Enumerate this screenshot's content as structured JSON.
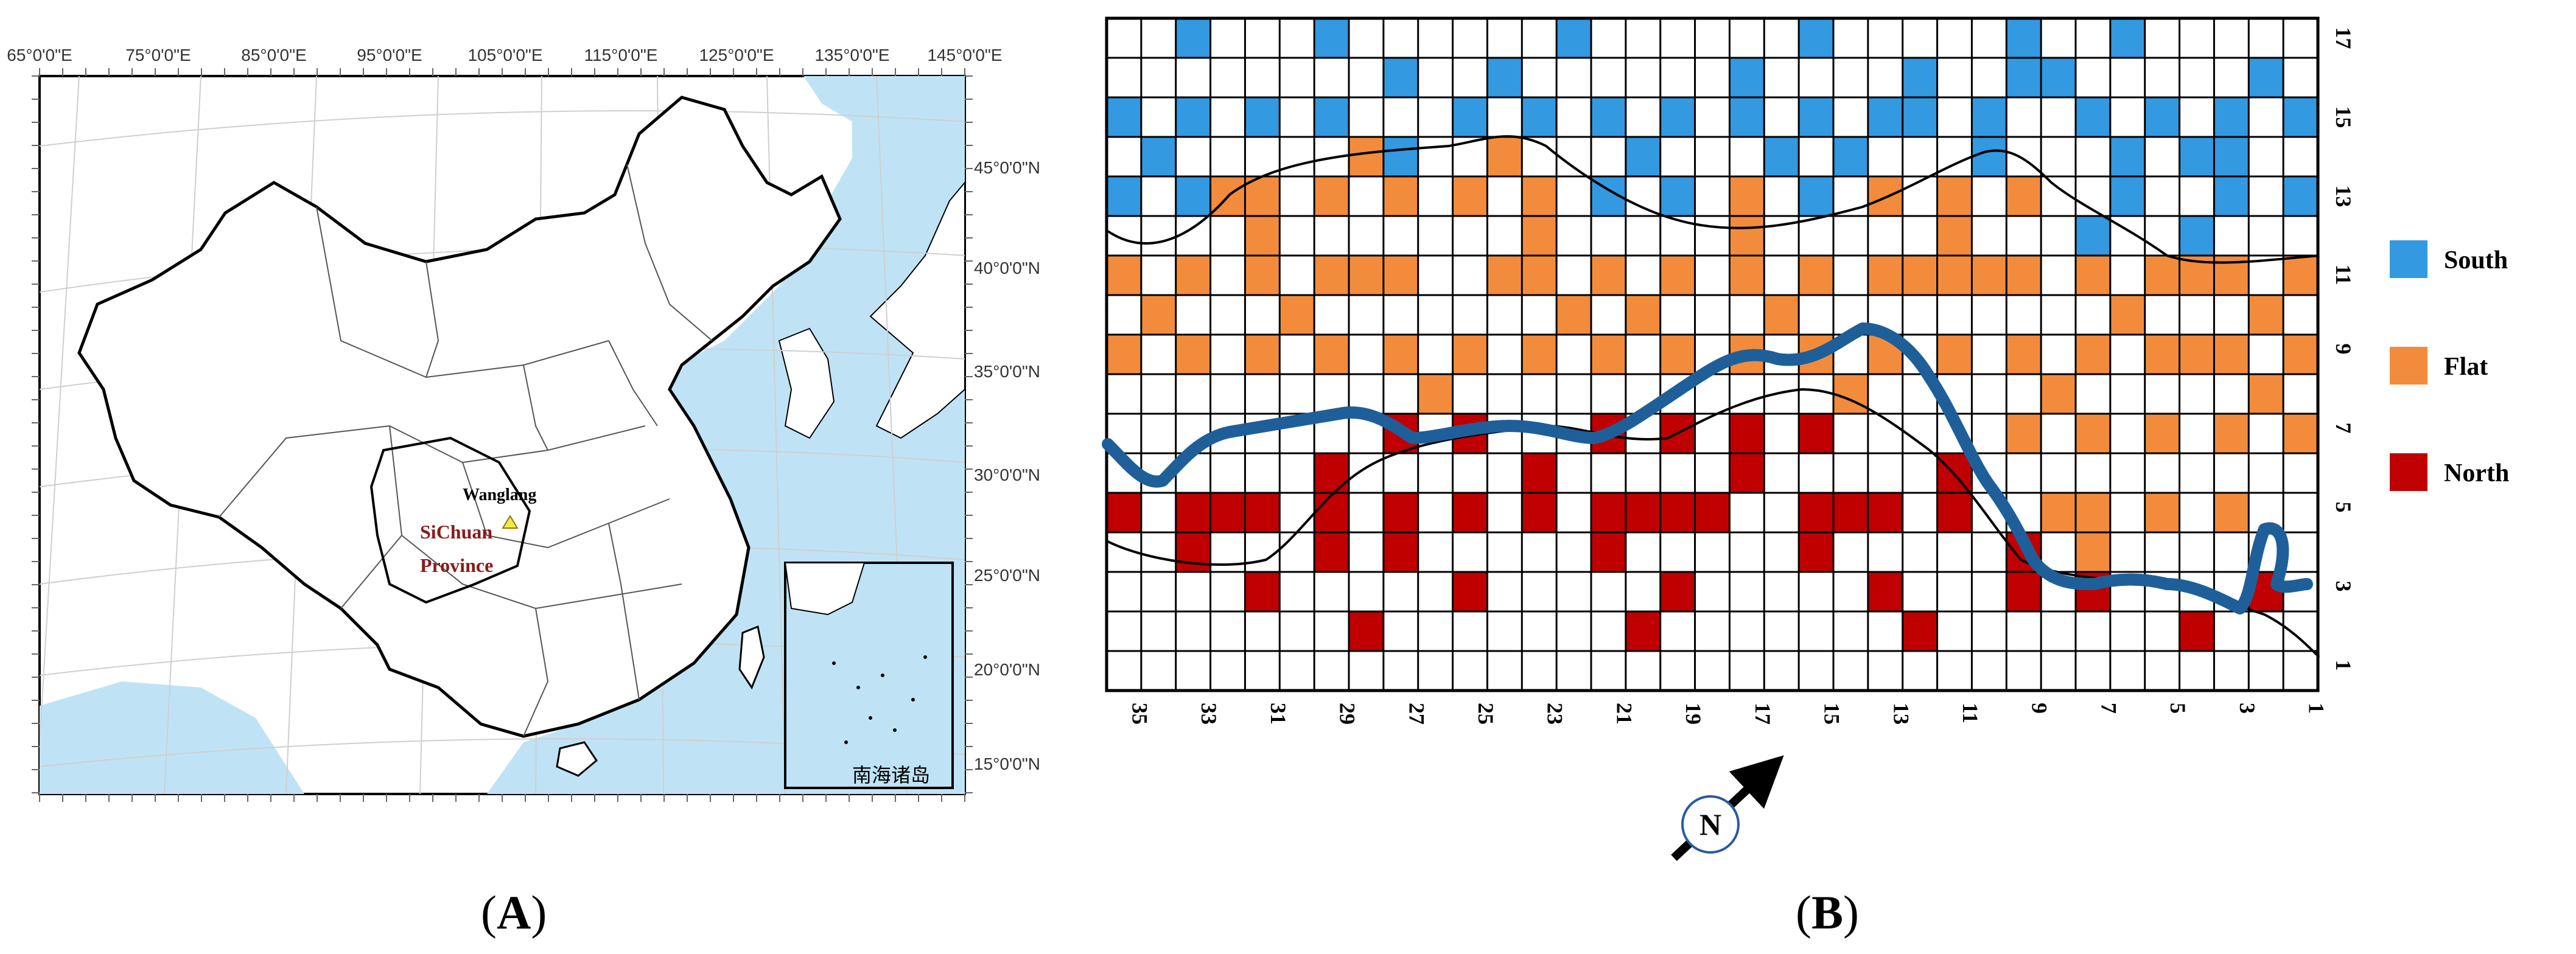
{
  "panel_a": {
    "lon_labels": [
      "65°0'0\"E",
      "75°0'0\"E",
      "85°0'0\"E",
      "95°0'0\"E",
      "105°0'0\"E",
      "115°0'0\"E",
      "125°0'0\"E",
      "135°0'0\"E",
      "145°0'0\"E"
    ],
    "lat_labels": [
      "45°0'0\"N",
      "40°0'0\"N",
      "35°0'0\"N",
      "30°0'0\"N",
      "25°0'0\"N",
      "20°0'0\"N",
      "15°0'0\"N"
    ],
    "site_label": "Wanglang",
    "province_line1": "SiChuan",
    "province_line2": "Province",
    "inset_label": "南海诸岛",
    "colors": {
      "sea": "#bfe3f5",
      "land": "#ffffff",
      "border": "#000000",
      "province_text": "#8b1a1a",
      "site_marker": "#f5e94a"
    }
  },
  "panel_b": {
    "columns": 35,
    "rows": 17,
    "x_tick_labels": [
      "35",
      "33",
      "31",
      "29",
      "27",
      "25",
      "23",
      "21",
      "19",
      "17",
      "15",
      "13",
      "11",
      "9",
      "7",
      "5",
      "3",
      "1"
    ],
    "y_tick_labels": [
      "17",
      "15",
      "13",
      "11",
      "9",
      "7",
      "5",
      "3",
      "1"
    ],
    "legend": [
      {
        "label": "South",
        "color": "#3399e0"
      },
      {
        "label": "Flat",
        "color": "#f28c3c"
      },
      {
        "label": "North",
        "color": "#c00000"
      }
    ],
    "north_label": "N",
    "cells": {
      "south": [
        [
          1,
          15
        ],
        [
          1,
          13
        ],
        [
          2,
          16
        ],
        [
          3,
          15
        ],
        [
          3,
          14
        ],
        [
          3,
          13
        ],
        [
          4,
          14
        ],
        [
          4,
          12
        ],
        [
          5,
          15
        ],
        [
          6,
          17
        ],
        [
          6,
          14
        ],
        [
          6,
          13
        ],
        [
          7,
          15
        ],
        [
          7,
          12
        ],
        [
          9,
          16
        ],
        [
          9,
          17
        ],
        [
          8,
          16
        ],
        [
          10,
          14
        ],
        [
          10,
          15
        ],
        [
          11,
          13
        ],
        [
          12,
          16
        ],
        [
          12,
          15
        ],
        [
          13,
          15
        ],
        [
          14,
          14
        ],
        [
          15,
          17
        ],
        [
          15,
          15
        ],
        [
          15,
          13
        ],
        [
          16,
          14
        ],
        [
          17,
          16
        ],
        [
          17,
          15
        ],
        [
          17,
          13
        ],
        [
          19,
          15
        ],
        [
          19,
          13
        ],
        [
          20,
          14
        ],
        [
          21,
          15
        ],
        [
          21,
          13
        ],
        [
          22,
          17
        ],
        [
          23,
          15
        ],
        [
          24,
          16
        ],
        [
          25,
          15
        ],
        [
          27,
          16
        ],
        [
          27,
          14
        ],
        [
          29,
          17
        ],
        [
          29,
          15
        ],
        [
          31,
          15
        ],
        [
          33,
          17
        ],
        [
          33,
          15
        ],
        [
          33,
          13
        ],
        [
          34,
          14
        ],
        [
          35,
          15
        ],
        [
          35,
          13
        ]
      ],
      "flat": [
        [
          1,
          11
        ],
        [
          1,
          9
        ],
        [
          1,
          7
        ],
        [
          2,
          10
        ],
        [
          2,
          8
        ],
        [
          3,
          11
        ],
        [
          3,
          9
        ],
        [
          3,
          7
        ],
        [
          3,
          5
        ],
        [
          4,
          11
        ],
        [
          4,
          9
        ],
        [
          5,
          11
        ],
        [
          5,
          9
        ],
        [
          5,
          7
        ],
        [
          5,
          5
        ],
        [
          6,
          10
        ],
        [
          7,
          11
        ],
        [
          7,
          9
        ],
        [
          7,
          7
        ],
        [
          7,
          5
        ],
        [
          7,
          4
        ],
        [
          8,
          8
        ],
        [
          8,
          5
        ],
        [
          9,
          11
        ],
        [
          9,
          9
        ],
        [
          9,
          7
        ],
        [
          9,
          13
        ],
        [
          10,
          11
        ],
        [
          11,
          13
        ],
        [
          11,
          12
        ],
        [
          11,
          11
        ],
        [
          11,
          9
        ],
        [
          12,
          11
        ],
        [
          13,
          9
        ],
        [
          13,
          13
        ],
        [
          13,
          11
        ],
        [
          14,
          8
        ],
        [
          15,
          11
        ],
        [
          15,
          9
        ],
        [
          16,
          10
        ],
        [
          17,
          13
        ],
        [
          17,
          12
        ],
        [
          17,
          11
        ],
        [
          17,
          9
        ],
        [
          19,
          11
        ],
        [
          19,
          9
        ],
        [
          20,
          10
        ],
        [
          21,
          11
        ],
        [
          21,
          9
        ],
        [
          22,
          10
        ],
        [
          23,
          13
        ],
        [
          23,
          12
        ],
        [
          23,
          11
        ],
        [
          23,
          9
        ],
        [
          24,
          14
        ],
        [
          24,
          11
        ],
        [
          25,
          13
        ],
        [
          25,
          9
        ],
        [
          26,
          8
        ],
        [
          27,
          13
        ],
        [
          27,
          11
        ],
        [
          27,
          9
        ],
        [
          28,
          14
        ],
        [
          28,
          11
        ],
        [
          29,
          13
        ],
        [
          29,
          11
        ],
        [
          29,
          9
        ],
        [
          30,
          10
        ],
        [
          31,
          13
        ],
        [
          31,
          12
        ],
        [
          31,
          11
        ],
        [
          31,
          9
        ],
        [
          32,
          13
        ],
        [
          33,
          11
        ],
        [
          33,
          9
        ],
        [
          34,
          10
        ],
        [
          35,
          11
        ],
        [
          35,
          9
        ]
      ],
      "north": [
        [
          2,
          3
        ],
        [
          4,
          2
        ],
        [
          7,
          3
        ],
        [
          9,
          4
        ],
        [
          9,
          3
        ],
        [
          11,
          5
        ],
        [
          11,
          6
        ],
        [
          12,
          2
        ],
        [
          13,
          3
        ],
        [
          13,
          5
        ],
        [
          14,
          5
        ],
        [
          15,
          4
        ],
        [
          15,
          5
        ],
        [
          15,
          7
        ],
        [
          17,
          7
        ],
        [
          17,
          6
        ],
        [
          18,
          5
        ],
        [
          19,
          7
        ],
        [
          19,
          5
        ],
        [
          19,
          3
        ],
        [
          20,
          2
        ],
        [
          20,
          5
        ],
        [
          21,
          7
        ],
        [
          21,
          5
        ],
        [
          21,
          4
        ],
        [
          23,
          6
        ],
        [
          23,
          5
        ],
        [
          25,
          7
        ],
        [
          25,
          5
        ],
        [
          25,
          3
        ],
        [
          27,
          7
        ],
        [
          27,
          5
        ],
        [
          27,
          4
        ],
        [
          28,
          2
        ],
        [
          29,
          6
        ],
        [
          29,
          5
        ],
        [
          29,
          4
        ],
        [
          31,
          5
        ],
        [
          31,
          3
        ],
        [
          32,
          5
        ],
        [
          33,
          5
        ],
        [
          33,
          4
        ],
        [
          35,
          5
        ]
      ]
    }
  }
}
